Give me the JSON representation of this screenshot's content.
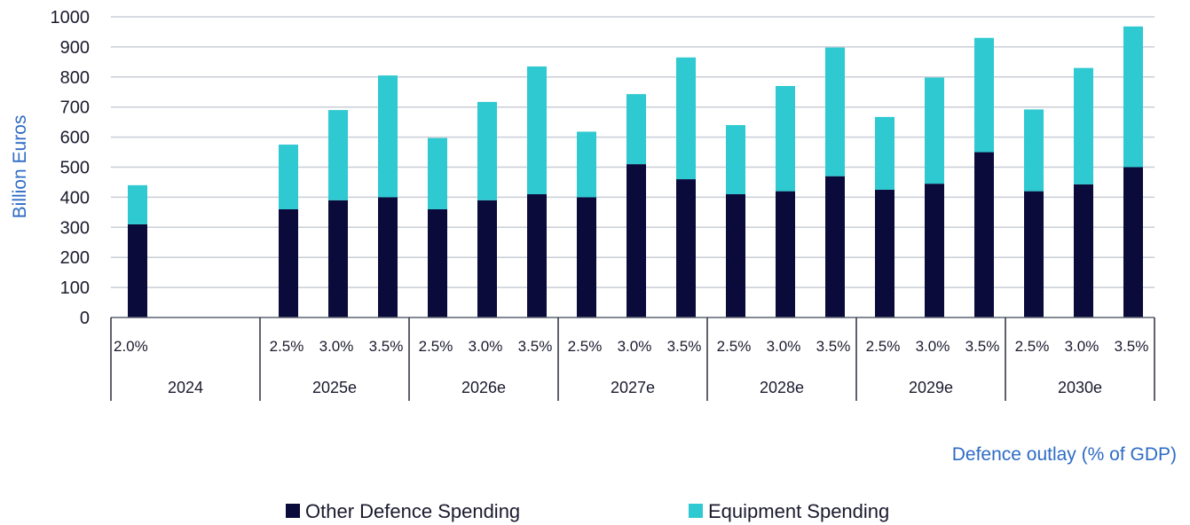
{
  "chart_data": {
    "type": "bar",
    "stacked": true,
    "title": "",
    "xlabel": "Defence outlay (% of GDP)",
    "ylabel": "Billion Euros",
    "ylim": [
      0,
      1000
    ],
    "yticks": [
      0,
      100,
      200,
      300,
      400,
      500,
      600,
      700,
      800,
      900,
      1000
    ],
    "grid": true,
    "legend_position": "bottom",
    "groups": [
      {
        "label": "2024",
        "categories": [
          "2.0%"
        ]
      },
      {
        "label": "2025e",
        "categories": [
          "2.5%",
          "3.0%",
          "3.5%"
        ]
      },
      {
        "label": "2026e",
        "categories": [
          "2.5%",
          "3.0%",
          "3.5%"
        ]
      },
      {
        "label": "2027e",
        "categories": [
          "2.5%",
          "3.0%",
          "3.5%"
        ]
      },
      {
        "label": "2028e",
        "categories": [
          "2.5%",
          "3.0%",
          "3.5%"
        ]
      },
      {
        "label": "2029e",
        "categories": [
          "2.5%",
          "3.0%",
          "3.5%"
        ]
      },
      {
        "label": "2030e",
        "categories": [
          "2.5%",
          "3.0%",
          "3.5%"
        ]
      }
    ],
    "series": [
      {
        "name": "Other Defence Spending",
        "color": "#0b0b3b",
        "values": [
          310,
          360,
          390,
          400,
          360,
          390,
          410,
          400,
          510,
          460,
          410,
          420,
          470,
          425,
          445,
          550,
          420,
          443,
          500
        ]
      },
      {
        "name": "Equipment Spending",
        "color": "#2ec9d1",
        "values": [
          130,
          215,
          300,
          405,
          237,
          327,
          425,
          218,
          233,
          405,
          230,
          350,
          428,
          242,
          353,
          380,
          272,
          387,
          468
        ]
      }
    ]
  }
}
